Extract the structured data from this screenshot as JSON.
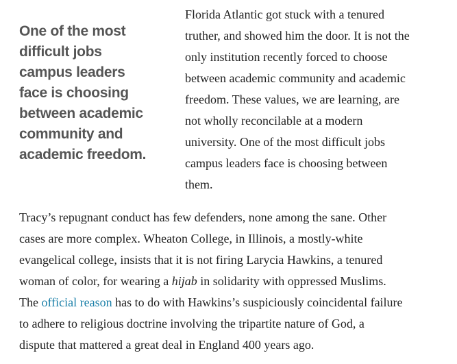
{
  "pull_quote": {
    "lines": [
      "One of the most",
      "difficult jobs",
      "campus leaders",
      "face is choosing",
      "between academic",
      "community and",
      "academic freedom."
    ]
  },
  "paragraph1": {
    "lines": [
      "Florida Atlantic got stuck with a tenured",
      "truther, and showed him the door. It is not the",
      "only institution recently forced to choose",
      "between academic community and academic",
      "freedom. These values, we are learning, are",
      "not wholly reconcilable at a modern",
      "university. One of the most difficult jobs",
      "campus leaders face is choosing between",
      "them."
    ]
  },
  "paragraph2": {
    "line1": "Tracy’s repugnant conduct has few defenders, none among the sane. Other",
    "line2": "cases are more complex. Wheaton College, in Illinois, a mostly-white",
    "line3": "evangelical college, insists that it is not firing Larycia Hawkins, a tenured",
    "line4_a": "woman of color, for wearing a ",
    "line4_italic": "hijab",
    "line4_b": " in solidarity with oppressed Muslims.",
    "line5_a": "The ",
    "line5_link": "official reason",
    "line5_b": " has to do with Hawkins’s suspiciously coincidental failure",
    "line6": "to adhere to religious doctrine involving the tripartite nature of God, a",
    "line7": "dispute that mattered a great deal in England 400 years ago."
  },
  "colors": {
    "link": "#1a7fa8",
    "pull_quote": "#555555",
    "body_text": "#222222"
  }
}
